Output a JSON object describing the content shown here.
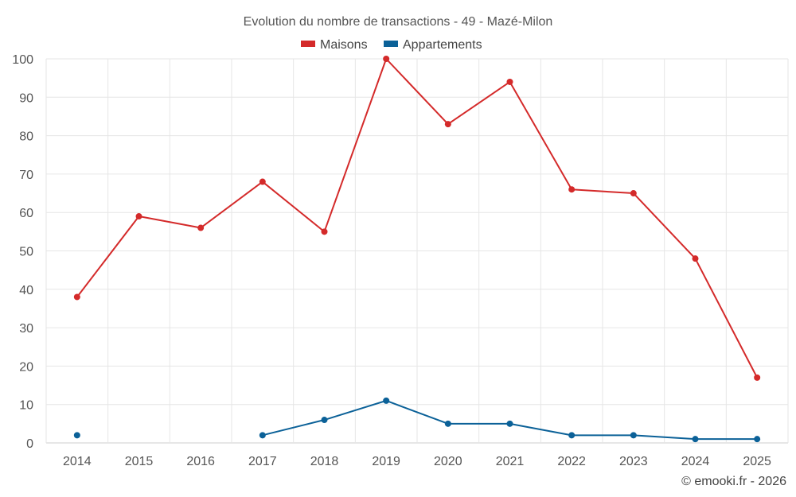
{
  "chart_data": {
    "type": "line",
    "title": "Evolution du nombre de transactions - 49 - Mazé-Milon",
    "categories": [
      "2014",
      "2015",
      "2016",
      "2017",
      "2018",
      "2019",
      "2020",
      "2021",
      "2022",
      "2023",
      "2024",
      "2025"
    ],
    "ylim": [
      0,
      100
    ],
    "yticks": [
      0,
      10,
      20,
      30,
      40,
      50,
      60,
      70,
      80,
      90,
      100
    ],
    "grid": true,
    "legend_position": "top-center",
    "series": [
      {
        "name": "Maisons",
        "color": "#d42a2a",
        "values": [
          38,
          59,
          56,
          68,
          55,
          100,
          83,
          94,
          66,
          65,
          48,
          17
        ]
      },
      {
        "name": "Appartements",
        "color": "#0b6198",
        "values": [
          2,
          null,
          null,
          2,
          6,
          11,
          5,
          5,
          2,
          2,
          1,
          1
        ]
      }
    ],
    "credit": "© emooki.fr - 2026"
  }
}
